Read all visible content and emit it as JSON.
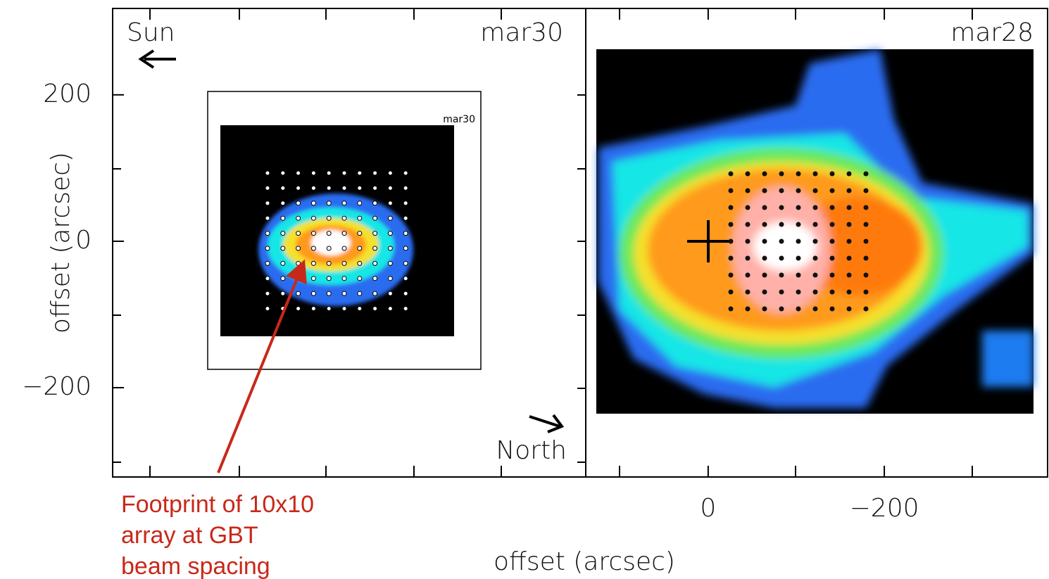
{
  "chart_data": [
    {
      "type": "image",
      "title": "mar30",
      "inset_title": "mar30",
      "ylabel": "offset (arcsec)",
      "ylim": [
        318,
        -322
      ],
      "yticks": [
        200,
        0,
        {
          "value": -200,
          "label": "−200"
        }
      ],
      "annotations": [
        "Sun",
        "North"
      ],
      "note": "Footprint of 10x10 array at GBT beam spacing"
    },
    {
      "type": "image",
      "title": "mar28",
      "xlabel": "offset (arcsec)",
      "xlim": [
        139,
        -387
      ],
      "xticks": [
        0,
        {
          "value": -200,
          "label": "−200"
        }
      ]
    }
  ]
}
